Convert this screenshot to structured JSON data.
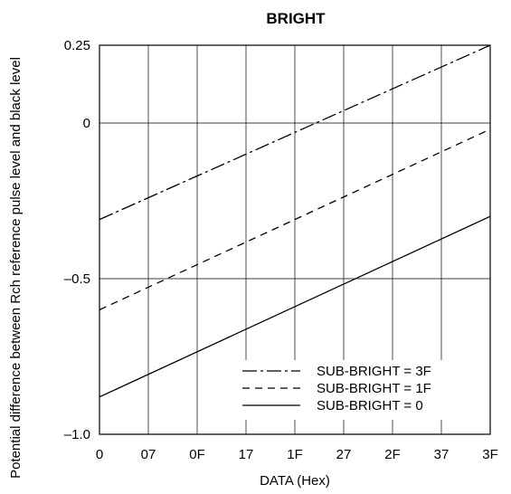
{
  "chart_data": {
    "type": "line",
    "title": "BRIGHT",
    "xlabel": "DATA (Hex)",
    "ylabel": "Potential difference between Rch reference pulse level and black level",
    "categories": [
      "0",
      "07",
      "0F",
      "17",
      "1F",
      "27",
      "2F",
      "37",
      "3F"
    ],
    "x_numeric": [
      0,
      63
    ],
    "ylim": [
      -1.0,
      0.25
    ],
    "yticks": [
      0.25,
      0,
      -0.5,
      -1.0
    ],
    "ytick_labels": [
      "0.25",
      "0",
      "–0.5",
      "–1.0"
    ],
    "grid": true,
    "legend_position": "bottom-right",
    "series": [
      {
        "name": "SUB-BRIGHT = 3F",
        "style": "dash-dot",
        "x": [
          0,
          63
        ],
        "y": [
          -0.31,
          0.25
        ]
      },
      {
        "name": "SUB-BRIGHT = 1F",
        "style": "dashed",
        "x": [
          0,
          63
        ],
        "y": [
          -0.6,
          -0.02
        ]
      },
      {
        "name": "SUB-BRIGHT = 0",
        "style": "solid",
        "x": [
          0,
          63
        ],
        "y": [
          -0.88,
          -0.3
        ]
      }
    ]
  }
}
